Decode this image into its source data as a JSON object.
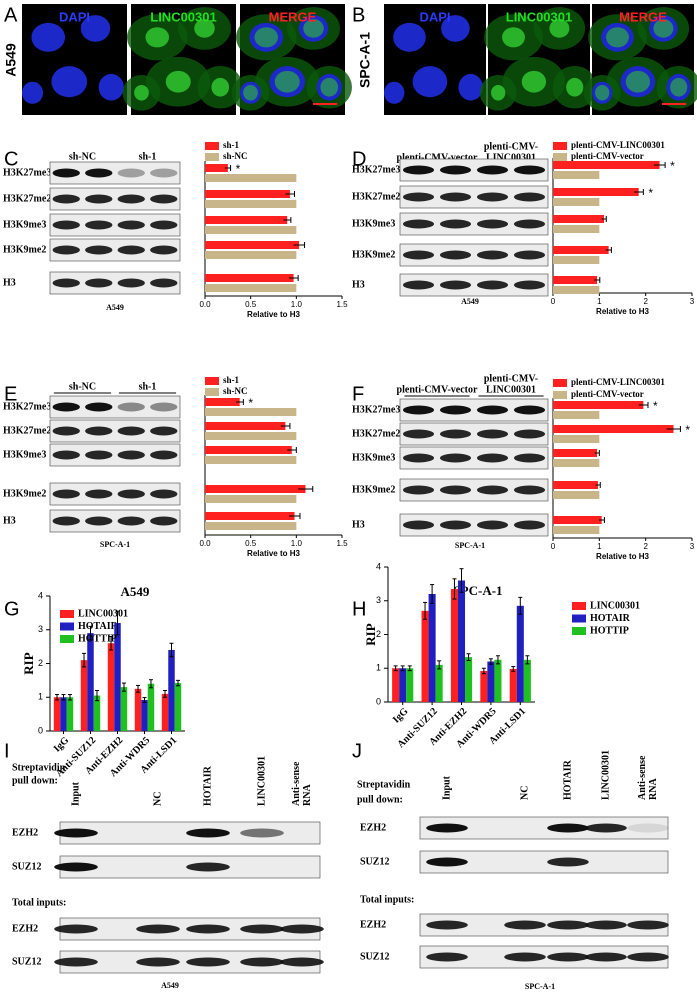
{
  "panels": {
    "A": {
      "letter": "A",
      "cell_line": "A549",
      "channels": [
        "DAPI",
        "LINC00301",
        "MERGE"
      ]
    },
    "B": {
      "letter": "B",
      "cell_line": "SPC-A-1",
      "channels": [
        "DAPI",
        "LINC00301",
        "MERGE"
      ]
    },
    "I": {
      "letter": "I",
      "pull_down": [
        "Streptavidin",
        "pull down:"
      ],
      "lanes": [
        [
          "Input"
        ],
        [
          "NC"
        ],
        [
          "HOTAIR"
        ],
        [
          "LINC00301"
        ],
        [
          "Anti-sense",
          "RNA"
        ]
      ],
      "rows": [
        "EZH2",
        "SUZ12"
      ],
      "total_label": "Total inputs:",
      "total_rows": [
        "EZH2",
        "SUZ12"
      ],
      "cell_line": "A549"
    },
    "J": {
      "letter": "J",
      "pull_down": [
        "Streptavidin",
        "pull down:"
      ],
      "lanes": [
        [
          "Input"
        ],
        [
          "NC"
        ],
        [
          "HOTAIR"
        ],
        [
          "LINC00301"
        ],
        [
          "Anti-sense",
          "RNA"
        ]
      ],
      "rows": [
        "EZH2",
        "SUZ12"
      ],
      "total_label": "Total inputs:",
      "total_rows": [
        "EZH2",
        "SUZ12"
      ],
      "cell_line": "SPC-A-1"
    }
  },
  "chart_data": [
    {
      "type": "barh",
      "letter": "C",
      "cell_line": "A549",
      "blot_groups": [
        [
          "sh-NC"
        ],
        [
          "sh-1"
        ]
      ],
      "categories": [
        "H3K27me3",
        "H3K27me2",
        "H3K9me3",
        "H3K9me2",
        "H3"
      ],
      "series": [
        {
          "name": "sh-1",
          "color": "#ff2020",
          "values": [
            0.25,
            0.93,
            0.9,
            1.03,
            0.97
          ],
          "errors": [
            0.03,
            0.05,
            0.04,
            0.06,
            0.05
          ]
        },
        {
          "name": "sh-NC",
          "color": "#c8b68a",
          "values": [
            1,
            1,
            1,
            1,
            1
          ]
        }
      ],
      "significance": [
        "*",
        null,
        null,
        null,
        null
      ],
      "xlabel": "Relative to H3",
      "xlim": [
        0,
        1.5
      ],
      "xticks": [
        {
          "value": 0,
          "label": "0.0"
        },
        0.5,
        {
          "value": 1,
          "label": "1.0"
        },
        1.5
      ],
      "legend": "top"
    },
    {
      "type": "barh",
      "letter": "D",
      "cell_line": "A549",
      "blot_groups": [
        [
          "plenti-CMV-vector"
        ],
        [
          "plenti-CMV-",
          "LINC00301"
        ]
      ],
      "categories": [
        "H3K27me3",
        "H3K27me2",
        "H3K9me3",
        "H3K9me2",
        "H3"
      ],
      "series": [
        {
          "name": "plenti-CMV-LINC00301",
          "color": "#ff2020",
          "values": [
            2.3,
            1.85,
            1.1,
            1.2,
            0.95
          ],
          "errors": [
            0.12,
            0.1,
            0.05,
            0.06,
            0.06
          ]
        },
        {
          "name": "plenti-CMV-vector",
          "color": "#c8b68a",
          "values": [
            1,
            1,
            1,
            1,
            1
          ]
        }
      ],
      "significance": [
        "*",
        "*",
        null,
        null,
        null
      ],
      "xlabel": "Relative to H3",
      "xlim": [
        0,
        3
      ],
      "xticks": [
        0,
        1,
        2,
        3
      ],
      "legend": "top"
    },
    {
      "type": "barh",
      "letter": "E",
      "cell_line": "SPC-A-1",
      "blot_groups": [
        [
          "sh-NC"
        ],
        [
          "sh-1"
        ]
      ],
      "categories": [
        "H3K27me3",
        "H3K27me2",
        "H3K9me3",
        "H3K9me2",
        "H3"
      ],
      "series": [
        {
          "name": "sh-1",
          "color": "#ff2020",
          "values": [
            0.38,
            0.88,
            0.95,
            1.1,
            0.98
          ],
          "errors": [
            0.04,
            0.05,
            0.05,
            0.08,
            0.06
          ]
        },
        {
          "name": "sh-NC",
          "color": "#c8b68a",
          "values": [
            1,
            1,
            1,
            1,
            1
          ]
        }
      ],
      "significance": [
        "*",
        null,
        null,
        null,
        null
      ],
      "xlabel": "Relative to H3",
      "xlim": [
        0,
        1.5
      ],
      "xticks": [
        {
          "value": 0,
          "label": "0.0"
        },
        0.5,
        {
          "value": 1,
          "label": "1.0"
        },
        1.5
      ],
      "legend": "top"
    },
    {
      "type": "barh",
      "letter": "F",
      "cell_line": "SPC-A-1",
      "blot_groups": [
        [
          "plenti-CMV-vector"
        ],
        [
          "plenti-CMV-",
          "LINC00301"
        ]
      ],
      "categories": [
        "H3K27me3",
        "H3K27me2",
        "H3K9me3",
        "H3K9me2",
        "H3"
      ],
      "series": [
        {
          "name": "plenti-CMV-LINC00301",
          "color": "#ff2020",
          "values": [
            1.95,
            2.6,
            0.95,
            0.97,
            1.05
          ],
          "errors": [
            0.1,
            0.15,
            0.05,
            0.05,
            0.06
          ]
        },
        {
          "name": "plenti-CMV-vector",
          "color": "#c8b68a",
          "values": [
            1,
            1,
            1,
            1,
            1
          ]
        }
      ],
      "significance": [
        "*",
        "*",
        null,
        null,
        null
      ],
      "xlabel": "Relative to H3",
      "xlim": [
        0,
        3
      ],
      "xticks": [
        0,
        1,
        2,
        3
      ],
      "legend": "top"
    },
    {
      "type": "bar",
      "letter": "G",
      "title": "A549",
      "ylabel": "RIP",
      "categories": [
        "IgG",
        "Anti-SUZ12",
        "Anti-EZH2",
        "Anti-WDR5",
        "Anti-LSD1"
      ],
      "series": [
        {
          "name": "LINC00301",
          "color": "#ff2020",
          "values": [
            1.0,
            2.1,
            2.6,
            1.25,
            1.1
          ],
          "errors": [
            0.08,
            0.2,
            0.2,
            0.1,
            0.1
          ]
        },
        {
          "name": "HOTAIR",
          "color": "#2020c0",
          "values": [
            1.0,
            2.9,
            3.2,
            0.92,
            2.4
          ],
          "errors": [
            0.08,
            0.2,
            0.35,
            0.07,
            0.2
          ]
        },
        {
          "name": "HOTTIP",
          "color": "#20c020",
          "values": [
            1.0,
            1.05,
            1.3,
            1.4,
            1.42
          ],
          "errors": [
            0.08,
            0.15,
            0.12,
            0.12,
            0.08
          ]
        }
      ],
      "ylim": [
        0,
        4
      ],
      "yticks": [
        0,
        1,
        2,
        3,
        4
      ],
      "legend": "upper left"
    },
    {
      "type": "bar",
      "letter": "H",
      "title": "SPC-A-1",
      "ylabel": "RIP",
      "categories": [
        "IgG",
        "Anti-SUZ12",
        "Anti-EZH2",
        "Anti-WDR5",
        "Anti-LSD1"
      ],
      "series": [
        {
          "name": "LINC00301",
          "color": "#ff2020",
          "values": [
            1.0,
            2.7,
            3.35,
            0.92,
            0.98
          ],
          "errors": [
            0.07,
            0.25,
            0.3,
            0.08,
            0.07
          ]
        },
        {
          "name": "HOTAIR",
          "color": "#2020c0",
          "values": [
            1.0,
            3.2,
            3.6,
            1.2,
            2.85
          ],
          "errors": [
            0.07,
            0.28,
            0.35,
            0.08,
            0.25
          ]
        },
        {
          "name": "HOTTIP",
          "color": "#20c020",
          "values": [
            1.0,
            1.1,
            1.33,
            1.25,
            1.25
          ],
          "errors": [
            0.07,
            0.12,
            0.1,
            0.12,
            0.12
          ]
        }
      ],
      "ylim": [
        0,
        4
      ],
      "yticks": [
        0,
        1,
        2,
        3,
        4
      ],
      "legend": "upper right"
    }
  ]
}
